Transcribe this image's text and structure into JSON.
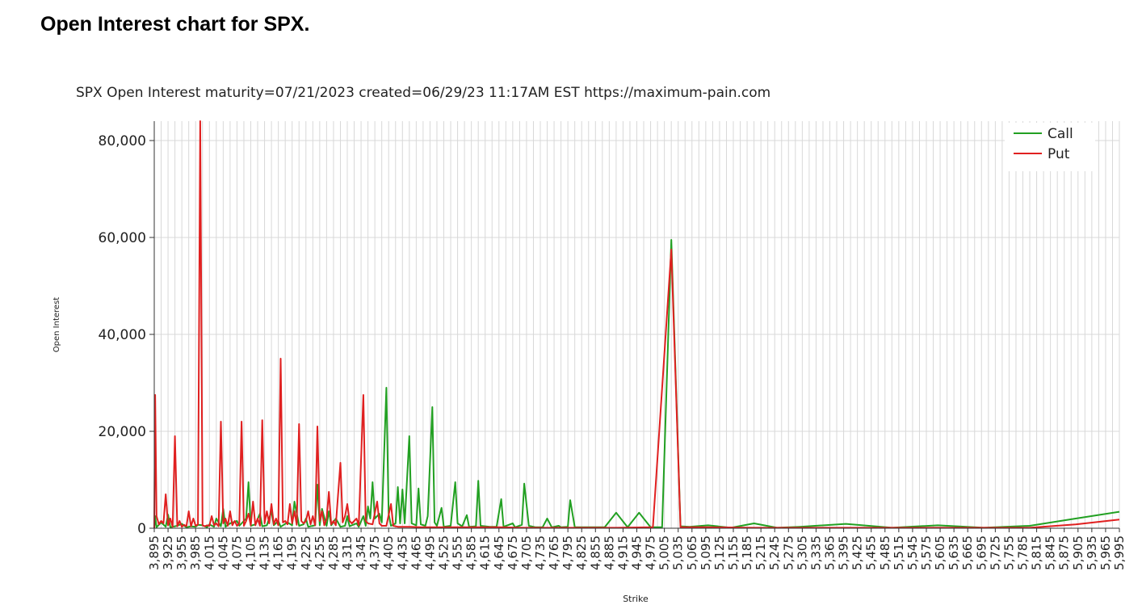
{
  "page": {
    "heading": "Open Interest chart for SPX."
  },
  "chart_data": {
    "type": "line",
    "title": "SPX Open Interest maturity=07/21/2023 created=06/29/23 11:17AM EST https://maximum-pain.com",
    "xlabel": "Strike",
    "ylabel": "Open Interest",
    "ylim": [
      0,
      84000
    ],
    "yticks": [
      0,
      20000,
      40000,
      60000,
      80000
    ],
    "ytick_labels": [
      "0",
      "20,000",
      "40,000",
      "60,000",
      "80,000"
    ],
    "xlim": [
      3895,
      5995
    ],
    "grid": true,
    "legend_position": "top-right",
    "xtick_labels": [
      "3,895",
      "3,925",
      "3,955",
      "3,985",
      "4,015",
      "4,045",
      "4,075",
      "4,105",
      "4,135",
      "4,165",
      "4,195",
      "4,225",
      "4,255",
      "4,285",
      "4,315",
      "4,345",
      "4,375",
      "4,405",
      "4,435",
      "4,465",
      "4,495",
      "4,525",
      "4,555",
      "4,585",
      "4,615",
      "4,645",
      "4,675",
      "4,705",
      "4,735",
      "4,765",
      "4,795",
      "4,825",
      "4,855",
      "4,885",
      "4,915",
      "4,945",
      "4,975",
      "5,005",
      "5,035",
      "5,065",
      "5,095",
      "5,125",
      "5,155",
      "5,185",
      "5,215",
      "5,245",
      "5,275",
      "5,305",
      "5,335",
      "5,365",
      "5,395",
      "5,425",
      "5,455",
      "5,485",
      "5,515",
      "5,545",
      "5,575",
      "5,605",
      "5,635",
      "5,665",
      "5,695",
      "5,725",
      "5,755",
      "5,785",
      "5,815",
      "5,845",
      "5,875",
      "5,905",
      "5,935",
      "5,965",
      "5,995"
    ],
    "series": [
      {
        "name": "Call",
        "color": "#22a022",
        "points": [
          [
            3895,
            0
          ],
          [
            3897,
            2500
          ],
          [
            3900,
            200
          ],
          [
            3910,
            1200
          ],
          [
            3920,
            300
          ],
          [
            3925,
            2800
          ],
          [
            3930,
            200
          ],
          [
            3945,
            500
          ],
          [
            3955,
            900
          ],
          [
            3965,
            200
          ],
          [
            3975,
            400
          ],
          [
            3985,
            300
          ],
          [
            3990,
            700
          ],
          [
            4000,
            600
          ],
          [
            4010,
            200
          ],
          [
            4015,
            800
          ],
          [
            4025,
            300
          ],
          [
            4030,
            2000
          ],
          [
            4040,
            400
          ],
          [
            4045,
            4000
          ],
          [
            4050,
            300
          ],
          [
            4060,
            1000
          ],
          [
            4075,
            1500
          ],
          [
            4080,
            500
          ],
          [
            4095,
            2000
          ],
          [
            4100,
            9500
          ],
          [
            4105,
            500
          ],
          [
            4115,
            800
          ],
          [
            4125,
            3000
          ],
          [
            4130,
            400
          ],
          [
            4140,
            600
          ],
          [
            4150,
            3500
          ],
          [
            4155,
            600
          ],
          [
            4165,
            1500
          ],
          [
            4170,
            300
          ],
          [
            4185,
            1200
          ],
          [
            4195,
            600
          ],
          [
            4200,
            5500
          ],
          [
            4210,
            500
          ],
          [
            4220,
            800
          ],
          [
            4225,
            2000
          ],
          [
            4230,
            300
          ],
          [
            4245,
            600
          ],
          [
            4250,
            9000
          ],
          [
            4255,
            600
          ],
          [
            4260,
            4000
          ],
          [
            4270,
            500
          ],
          [
            4275,
            3500
          ],
          [
            4280,
            600
          ],
          [
            4290,
            2000
          ],
          [
            4300,
            300
          ],
          [
            4310,
            500
          ],
          [
            4315,
            2500
          ],
          [
            4320,
            400
          ],
          [
            4335,
            1000
          ],
          [
            4340,
            300
          ],
          [
            4350,
            2500
          ],
          [
            4355,
            500
          ],
          [
            4360,
            4500
          ],
          [
            4365,
            2000
          ],
          [
            4370,
            9500
          ],
          [
            4375,
            2000
          ],
          [
            4385,
            3000
          ],
          [
            4390,
            1200
          ],
          [
            4400,
            29000
          ],
          [
            4405,
            3000
          ],
          [
            4410,
            500
          ],
          [
            4420,
            1000
          ],
          [
            4425,
            8500
          ],
          [
            4430,
            1000
          ],
          [
            4435,
            8000
          ],
          [
            4440,
            1000
          ],
          [
            4450,
            19000
          ],
          [
            4455,
            1000
          ],
          [
            4465,
            600
          ],
          [
            4470,
            8200
          ],
          [
            4475,
            800
          ],
          [
            4485,
            500
          ],
          [
            4490,
            2500
          ],
          [
            4500,
            25000
          ],
          [
            4505,
            1200
          ],
          [
            4510,
            500
          ],
          [
            4520,
            4200
          ],
          [
            4525,
            300
          ],
          [
            4540,
            500
          ],
          [
            4550,
            9500
          ],
          [
            4555,
            1000
          ],
          [
            4565,
            400
          ],
          [
            4575,
            2700
          ],
          [
            4580,
            300
          ],
          [
            4595,
            400
          ],
          [
            4600,
            9800
          ],
          [
            4605,
            500
          ],
          [
            4615,
            400
          ],
          [
            4625,
            300
          ],
          [
            4640,
            300
          ],
          [
            4650,
            6000
          ],
          [
            4655,
            300
          ],
          [
            4675,
            1000
          ],
          [
            4680,
            200
          ],
          [
            4695,
            700
          ],
          [
            4700,
            9200
          ],
          [
            4710,
            500
          ],
          [
            4725,
            200
          ],
          [
            4740,
            200
          ],
          [
            4750,
            2000
          ],
          [
            4760,
            200
          ],
          [
            4775,
            500
          ],
          [
            4780,
            200
          ],
          [
            4795,
            300
          ],
          [
            4800,
            5800
          ],
          [
            4810,
            200
          ],
          [
            4825,
            200
          ],
          [
            4850,
            200
          ],
          [
            4875,
            200
          ],
          [
            4900,
            3200
          ],
          [
            4925,
            200
          ],
          [
            4950,
            3200
          ],
          [
            4975,
            200
          ],
          [
            5000,
            200
          ],
          [
            5020,
            59500
          ],
          [
            5040,
            400
          ],
          [
            5060,
            300
          ],
          [
            5100,
            600
          ],
          [
            5150,
            100
          ],
          [
            5200,
            1000
          ],
          [
            5250,
            100
          ],
          [
            5300,
            300
          ],
          [
            5400,
            900
          ],
          [
            5500,
            100
          ],
          [
            5600,
            600
          ],
          [
            5700,
            100
          ],
          [
            5800,
            500
          ],
          [
            5900,
            2000
          ],
          [
            5995,
            3400
          ]
        ]
      },
      {
        "name": "Put",
        "color": "#e02020",
        "points": [
          [
            3895,
            0
          ],
          [
            3897,
            27500
          ],
          [
            3900,
            2500
          ],
          [
            3905,
            800
          ],
          [
            3910,
            1500
          ],
          [
            3915,
            1000
          ],
          [
            3920,
            7000
          ],
          [
            3925,
            600
          ],
          [
            3930,
            2000
          ],
          [
            3935,
            300
          ],
          [
            3940,
            19000
          ],
          [
            3945,
            400
          ],
          [
            3950,
            1500
          ],
          [
            3955,
            300
          ],
          [
            3960,
            700
          ],
          [
            3965,
            400
          ],
          [
            3970,
            3500
          ],
          [
            3975,
            400
          ],
          [
            3980,
            2000
          ],
          [
            3985,
            500
          ],
          [
            3990,
            800
          ],
          [
            3995,
            84000
          ],
          [
            4000,
            600
          ],
          [
            4005,
            400
          ],
          [
            4010,
            600
          ],
          [
            4015,
            500
          ],
          [
            4020,
            2500
          ],
          [
            4025,
            600
          ],
          [
            4030,
            1000
          ],
          [
            4035,
            400
          ],
          [
            4040,
            22000
          ],
          [
            4045,
            1000
          ],
          [
            4050,
            2000
          ],
          [
            4055,
            500
          ],
          [
            4060,
            3500
          ],
          [
            4065,
            600
          ],
          [
            4070,
            1500
          ],
          [
            4075,
            500
          ],
          [
            4080,
            1000
          ],
          [
            4085,
            22000
          ],
          [
            4090,
            500
          ],
          [
            4095,
            1500
          ],
          [
            4100,
            3000
          ],
          [
            4105,
            600
          ],
          [
            4110,
            5500
          ],
          [
            4115,
            600
          ],
          [
            4120,
            2000
          ],
          [
            4125,
            500
          ],
          [
            4130,
            22300
          ],
          [
            4135,
            1000
          ],
          [
            4140,
            3500
          ],
          [
            4145,
            1000
          ],
          [
            4150,
            5000
          ],
          [
            4155,
            800
          ],
          [
            4160,
            2000
          ],
          [
            4165,
            600
          ],
          [
            4170,
            35000
          ],
          [
            4175,
            1200
          ],
          [
            4180,
            1500
          ],
          [
            4185,
            800
          ],
          [
            4190,
            5000
          ],
          [
            4195,
            1000
          ],
          [
            4200,
            3500
          ],
          [
            4205,
            700
          ],
          [
            4210,
            21500
          ],
          [
            4215,
            1500
          ],
          [
            4220,
            1000
          ],
          [
            4225,
            1500
          ],
          [
            4230,
            3500
          ],
          [
            4235,
            800
          ],
          [
            4240,
            2500
          ],
          [
            4245,
            600
          ],
          [
            4250,
            21000
          ],
          [
            4255,
            1500
          ],
          [
            4260,
            3500
          ],
          [
            4265,
            600
          ],
          [
            4270,
            2000
          ],
          [
            4275,
            7500
          ],
          [
            4280,
            800
          ],
          [
            4285,
            1500
          ],
          [
            4290,
            600
          ],
          [
            4300,
            13500
          ],
          [
            4305,
            1200
          ],
          [
            4310,
            2500
          ],
          [
            4315,
            5000
          ],
          [
            4320,
            1500
          ],
          [
            4325,
            1000
          ],
          [
            4335,
            2000
          ],
          [
            4340,
            600
          ],
          [
            4350,
            27500
          ],
          [
            4355,
            1500
          ],
          [
            4360,
            1000
          ],
          [
            4370,
            800
          ],
          [
            4380,
            5500
          ],
          [
            4385,
            1000
          ],
          [
            4390,
            500
          ],
          [
            4400,
            500
          ],
          [
            4410,
            5000
          ],
          [
            4415,
            500
          ],
          [
            4425,
            300
          ],
          [
            4450,
            300
          ],
          [
            4475,
            200
          ],
          [
            4500,
            200
          ],
          [
            4550,
            200
          ],
          [
            4600,
            200
          ],
          [
            4650,
            200
          ],
          [
            4700,
            100
          ],
          [
            4800,
            100
          ],
          [
            4900,
            100
          ],
          [
            4980,
            200
          ],
          [
            5020,
            57500
          ],
          [
            5040,
            200
          ],
          [
            5100,
            200
          ],
          [
            5200,
            100
          ],
          [
            5300,
            100
          ],
          [
            5400,
            100
          ],
          [
            5500,
            100
          ],
          [
            5600,
            100
          ],
          [
            5700,
            100
          ],
          [
            5800,
            100
          ],
          [
            5900,
            800
          ],
          [
            5995,
            1800
          ]
        ]
      }
    ]
  }
}
